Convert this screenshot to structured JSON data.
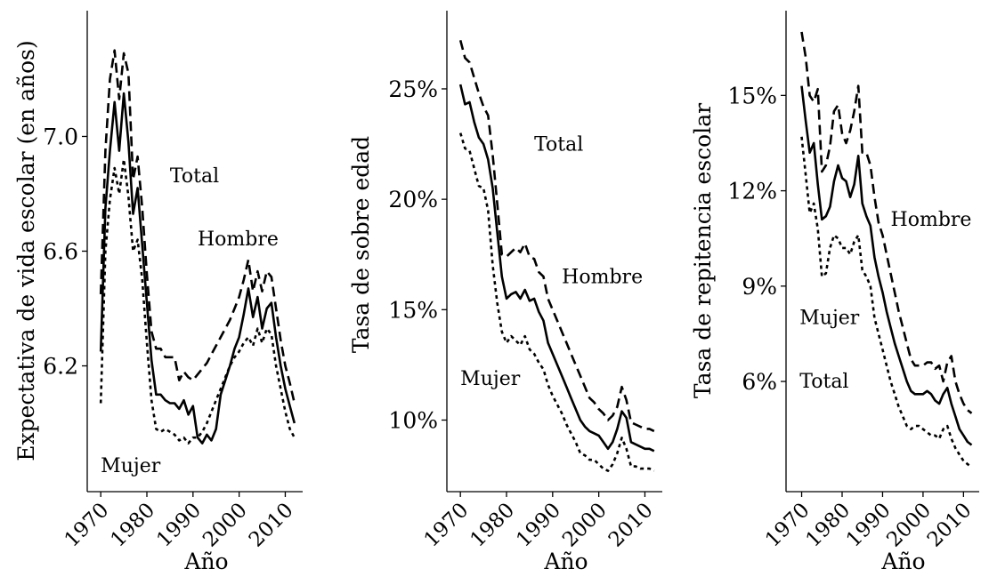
{
  "chart_data": [
    {
      "type": "line",
      "xlabel": "Año",
      "ylabel": "Expectativa de vida escolar (en años)",
      "xlim": [
        1969,
        2013
      ],
      "ylim": [
        5.78,
        7.42
      ],
      "xticks": [
        1970,
        1980,
        1990,
        2000,
        2010
      ],
      "yticks": [
        6.2,
        6.6,
        7.0
      ],
      "ytick_labels": [
        "6.2",
        "6.6",
        "7.0"
      ],
      "annotations": [
        {
          "text": "Total",
          "x": 1985,
          "y": 6.84
        },
        {
          "text": "Hombre",
          "x": 1991,
          "y": 6.62
        },
        {
          "text": "Mujer",
          "x": 1970,
          "y": 5.83
        }
      ],
      "series": [
        {
          "name": "Total",
          "dash": "solid",
          "x": [
            1970,
            1971,
            1972,
            1973,
            1974,
            1975,
            1976,
            1977,
            1978,
            1979,
            1980,
            1981,
            1982,
            1983,
            1984,
            1985,
            1986,
            1987,
            1988,
            1989,
            1990,
            1991,
            1992,
            1993,
            1994,
            1995,
            1996,
            1997,
            1998,
            1999,
            2000,
            2001,
            2002,
            2003,
            2004,
            2005,
            2006,
            2007,
            2008,
            2009,
            2010,
            2011,
            2012
          ],
          "values": [
            6.25,
            6.75,
            6.95,
            7.12,
            6.95,
            7.15,
            6.98,
            6.73,
            6.82,
            6.62,
            6.42,
            6.22,
            6.1,
            6.1,
            6.08,
            6.07,
            6.07,
            6.05,
            6.08,
            6.03,
            6.06,
            5.95,
            5.93,
            5.96,
            5.94,
            5.98,
            6.1,
            6.15,
            6.2,
            6.26,
            6.3,
            6.38,
            6.47,
            6.37,
            6.44,
            6.33,
            6.4,
            6.42,
            6.3,
            6.2,
            6.12,
            6.06,
            6.0
          ]
        },
        {
          "name": "Hombre",
          "dash": "dashed",
          "x": [
            1970,
            1971,
            1972,
            1973,
            1974,
            1975,
            1976,
            1977,
            1978,
            1979,
            1980,
            1981,
            1982,
            1983,
            1984,
            1985,
            1986,
            1987,
            1988,
            1989,
            1990,
            1991,
            1992,
            1993,
            1994,
            1995,
            1996,
            1997,
            1998,
            1999,
            2000,
            2001,
            2002,
            2003,
            2004,
            2005,
            2006,
            2007,
            2008,
            2009,
            2010,
            2011,
            2012
          ],
          "values": [
            6.45,
            6.95,
            7.2,
            7.3,
            7.13,
            7.29,
            7.22,
            6.85,
            6.93,
            6.75,
            6.52,
            6.32,
            6.26,
            6.26,
            6.23,
            6.23,
            6.23,
            6.15,
            6.18,
            6.16,
            6.15,
            6.17,
            6.19,
            6.21,
            6.24,
            6.27,
            6.3,
            6.33,
            6.36,
            6.4,
            6.44,
            6.5,
            6.57,
            6.46,
            6.53,
            6.46,
            6.53,
            6.51,
            6.4,
            6.29,
            6.2,
            6.14,
            6.07
          ]
        },
        {
          "name": "Mujer",
          "dash": "dotted",
          "x": [
            1970,
            1971,
            1972,
            1973,
            1974,
            1975,
            1976,
            1977,
            1978,
            1979,
            1980,
            1981,
            1982,
            1983,
            1984,
            1985,
            1986,
            1987,
            1988,
            1989,
            1990,
            1991,
            1992,
            1993,
            1994,
            1995,
            1996,
            1997,
            1998,
            1999,
            2000,
            2001,
            2002,
            2003,
            2004,
            2005,
            2006,
            2007,
            2008,
            2009,
            2010,
            2011,
            2012
          ],
          "values": [
            6.07,
            6.6,
            6.78,
            6.89,
            6.8,
            6.92,
            6.79,
            6.6,
            6.64,
            6.5,
            6.28,
            6.08,
            5.98,
            5.97,
            5.98,
            5.97,
            5.96,
            5.94,
            5.95,
            5.93,
            5.95,
            5.95,
            5.97,
            6.0,
            6.04,
            6.08,
            6.12,
            6.16,
            6.2,
            6.23,
            6.25,
            6.28,
            6.3,
            6.27,
            6.33,
            6.28,
            6.33,
            6.31,
            6.2,
            6.12,
            6.04,
            5.98,
            5.95
          ]
        }
      ]
    },
    {
      "type": "line",
      "xlabel": "Año",
      "ylabel": "Tasa de sobre edad",
      "xlim": [
        1969,
        2013
      ],
      "ylim": [
        7.0,
        28.3
      ],
      "xticks": [
        1970,
        1980,
        1990,
        2000,
        2010
      ],
      "yticks": [
        10,
        15,
        20,
        25
      ],
      "ytick_labels": [
        "10%",
        "15%",
        "20%",
        "25%"
      ],
      "annotations": [
        {
          "text": "Total",
          "x": 1986,
          "y": 22.2
        },
        {
          "text": "Hombre",
          "x": 1992,
          "y": 16.2
        },
        {
          "text": "Mujer",
          "x": 1970,
          "y": 11.6
        }
      ],
      "series": [
        {
          "name": "Total",
          "dash": "solid",
          "x": [
            1970,
            1971,
            1972,
            1973,
            1974,
            1975,
            1976,
            1977,
            1978,
            1979,
            1980,
            1981,
            1982,
            1983,
            1984,
            1985,
            1986,
            1987,
            1988,
            1989,
            1990,
            1991,
            1992,
            1993,
            1994,
            1995,
            1996,
            1997,
            1998,
            1999,
            2000,
            2001,
            2002,
            2003,
            2004,
            2005,
            2006,
            2007,
            2008,
            2009,
            2010,
            2011,
            2012
          ],
          "values": [
            25.2,
            24.3,
            24.4,
            23.5,
            22.8,
            22.5,
            21.8,
            20.5,
            18.5,
            16.5,
            15.5,
            15.7,
            15.8,
            15.5,
            15.9,
            15.4,
            15.5,
            14.9,
            14.5,
            13.5,
            13.0,
            12.5,
            12.0,
            11.5,
            11.0,
            10.5,
            10.0,
            9.7,
            9.5,
            9.4,
            9.3,
            9.0,
            8.7,
            9.0,
            9.6,
            10.4,
            10.1,
            9.0,
            8.9,
            8.8,
            8.7,
            8.7,
            8.6
          ]
        },
        {
          "name": "Hombre",
          "dash": "dashed",
          "x": [
            1970,
            1971,
            1972,
            1973,
            1974,
            1975,
            1976,
            1977,
            1978,
            1979,
            1980,
            1981,
            1982,
            1983,
            1984,
            1985,
            1986,
            1987,
            1988,
            1989,
            1990,
            1991,
            1992,
            1993,
            1994,
            1995,
            1996,
            1997,
            1998,
            1999,
            2000,
            2001,
            2002,
            2003,
            2004,
            2005,
            2006,
            2007,
            2008,
            2009,
            2010,
            2011,
            2012
          ],
          "values": [
            27.2,
            26.4,
            26.2,
            25.5,
            24.8,
            24.2,
            23.8,
            22.0,
            19.8,
            17.5,
            17.4,
            17.6,
            17.8,
            17.6,
            18.0,
            17.4,
            17.3,
            16.7,
            16.5,
            15.5,
            15.0,
            14.5,
            14.0,
            13.5,
            13.0,
            12.5,
            12.0,
            11.5,
            11.0,
            10.8,
            10.5,
            10.3,
            10.0,
            10.2,
            10.6,
            11.5,
            10.9,
            9.9,
            9.8,
            9.7,
            9.6,
            9.6,
            9.5
          ]
        },
        {
          "name": "Mujer",
          "dash": "dotted",
          "x": [
            1970,
            1971,
            1972,
            1973,
            1974,
            1975,
            1976,
            1977,
            1978,
            1979,
            1980,
            1981,
            1982,
            1983,
            1984,
            1985,
            1986,
            1987,
            1988,
            1989,
            1990,
            1991,
            1992,
            1993,
            1994,
            1995,
            1996,
            1997,
            1998,
            1999,
            2000,
            2001,
            2002,
            2003,
            2004,
            2005,
            2006,
            2007,
            2008,
            2009,
            2010,
            2011,
            2012
          ],
          "values": [
            23.0,
            22.3,
            22.2,
            21.4,
            20.6,
            20.5,
            19.5,
            17.0,
            15.3,
            14.0,
            13.5,
            13.8,
            13.6,
            13.4,
            13.8,
            13.2,
            13.0,
            12.6,
            12.3,
            11.6,
            11.1,
            10.7,
            10.3,
            9.8,
            9.4,
            9.0,
            8.5,
            8.4,
            8.2,
            8.2,
            8.0,
            7.8,
            7.7,
            8.0,
            8.5,
            9.2,
            8.7,
            7.9,
            7.9,
            7.8,
            7.8,
            7.8,
            7.7
          ]
        }
      ]
    },
    {
      "type": "line",
      "xlabel": "Año",
      "ylabel": "Tasa de repitencia escolar",
      "xlim": [
        1969,
        2013
      ],
      "ylim": [
        2.7,
        17.5
      ],
      "xticks": [
        1970,
        1980,
        1990,
        2000,
        2010
      ],
      "yticks": [
        6,
        9,
        12,
        15
      ],
      "ytick_labels": [
        "6%",
        "9%",
        "12%",
        "15%"
      ],
      "annotations": [
        {
          "text": "Hombre",
          "x": 1992,
          "y": 10.9
        },
        {
          "text": "Mujer",
          "x": 1969.5,
          "y": 7.8
        },
        {
          "text": "Total",
          "x": 1969.5,
          "y": 5.8
        }
      ],
      "series": [
        {
          "name": "Total",
          "dash": "solid",
          "x": [
            1970,
            1971,
            1972,
            1973,
            1974,
            1975,
            1976,
            1977,
            1978,
            1979,
            1980,
            1981,
            1982,
            1983,
            1984,
            1985,
            1986,
            1987,
            1988,
            1989,
            1990,
            1991,
            1992,
            1993,
            1994,
            1995,
            1996,
            1997,
            1998,
            1999,
            2000,
            2001,
            2002,
            2003,
            2004,
            2005,
            2006,
            2007,
            2008,
            2009,
            2010,
            2011,
            2012
          ],
          "values": [
            15.3,
            14.2,
            13.2,
            13.5,
            12.2,
            11.1,
            11.2,
            11.5,
            12.3,
            12.8,
            12.4,
            12.3,
            11.8,
            12.2,
            13.1,
            11.6,
            11.2,
            10.9,
            9.9,
            9.3,
            8.8,
            8.2,
            7.7,
            7.2,
            6.8,
            6.4,
            6.0,
            5.7,
            5.6,
            5.6,
            5.6,
            5.7,
            5.6,
            5.4,
            5.3,
            5.6,
            5.8,
            5.3,
            4.9,
            4.5,
            4.3,
            4.1,
            4.0
          ]
        },
        {
          "name": "Hombre",
          "dash": "dashed",
          "x": [
            1970,
            1971,
            1972,
            1973,
            1974,
            1975,
            1976,
            1977,
            1978,
            1979,
            1980,
            1981,
            1982,
            1983,
            1984,
            1985,
            1986,
            1987,
            1988,
            1989,
            1990,
            1991,
            1992,
            1993,
            1994,
            1995,
            1996,
            1997,
            1998,
            1999,
            2000,
            2001,
            2002,
            2003,
            2004,
            2005,
            2006,
            2007,
            2008,
            2009,
            2010,
            2011,
            2012
          ],
          "values": [
            17.0,
            16.2,
            15.0,
            14.8,
            15.2,
            12.6,
            12.8,
            13.4,
            14.5,
            14.7,
            13.8,
            13.5,
            13.9,
            14.5,
            15.3,
            13.2,
            13.2,
            12.8,
            11.8,
            11.0,
            10.6,
            10.0,
            9.4,
            8.8,
            8.2,
            7.7,
            7.2,
            6.7,
            6.5,
            6.5,
            6.5,
            6.6,
            6.6,
            6.4,
            6.5,
            6.0,
            6.6,
            6.8,
            6.0,
            5.6,
            5.3,
            5.1,
            5.0
          ]
        },
        {
          "name": "Mujer",
          "dash": "dotted",
          "x": [
            1970,
            1971,
            1972,
            1973,
            1974,
            1975,
            1976,
            1977,
            1978,
            1979,
            1980,
            1981,
            1982,
            1983,
            1984,
            1985,
            1986,
            1987,
            1988,
            1989,
            1990,
            1991,
            1992,
            1993,
            1994,
            1995,
            1996,
            1997,
            1998,
            1999,
            2000,
            2001,
            2002,
            2003,
            2004,
            2005,
            2006,
            2007,
            2008,
            2009,
            2010,
            2011,
            2012
          ],
          "values": [
            13.7,
            12.5,
            11.3,
            11.6,
            10.8,
            9.3,
            9.4,
            10.2,
            10.6,
            10.5,
            10.2,
            10.2,
            10.0,
            10.4,
            10.6,
            9.5,
            9.3,
            9.0,
            8.0,
            7.5,
            7.0,
            6.5,
            6.0,
            5.6,
            5.2,
            4.9,
            4.6,
            4.5,
            4.6,
            4.6,
            4.5,
            4.4,
            4.3,
            4.3,
            4.2,
            4.5,
            4.6,
            4.2,
            3.9,
            3.7,
            3.5,
            3.4,
            3.3
          ]
        }
      ]
    }
  ]
}
